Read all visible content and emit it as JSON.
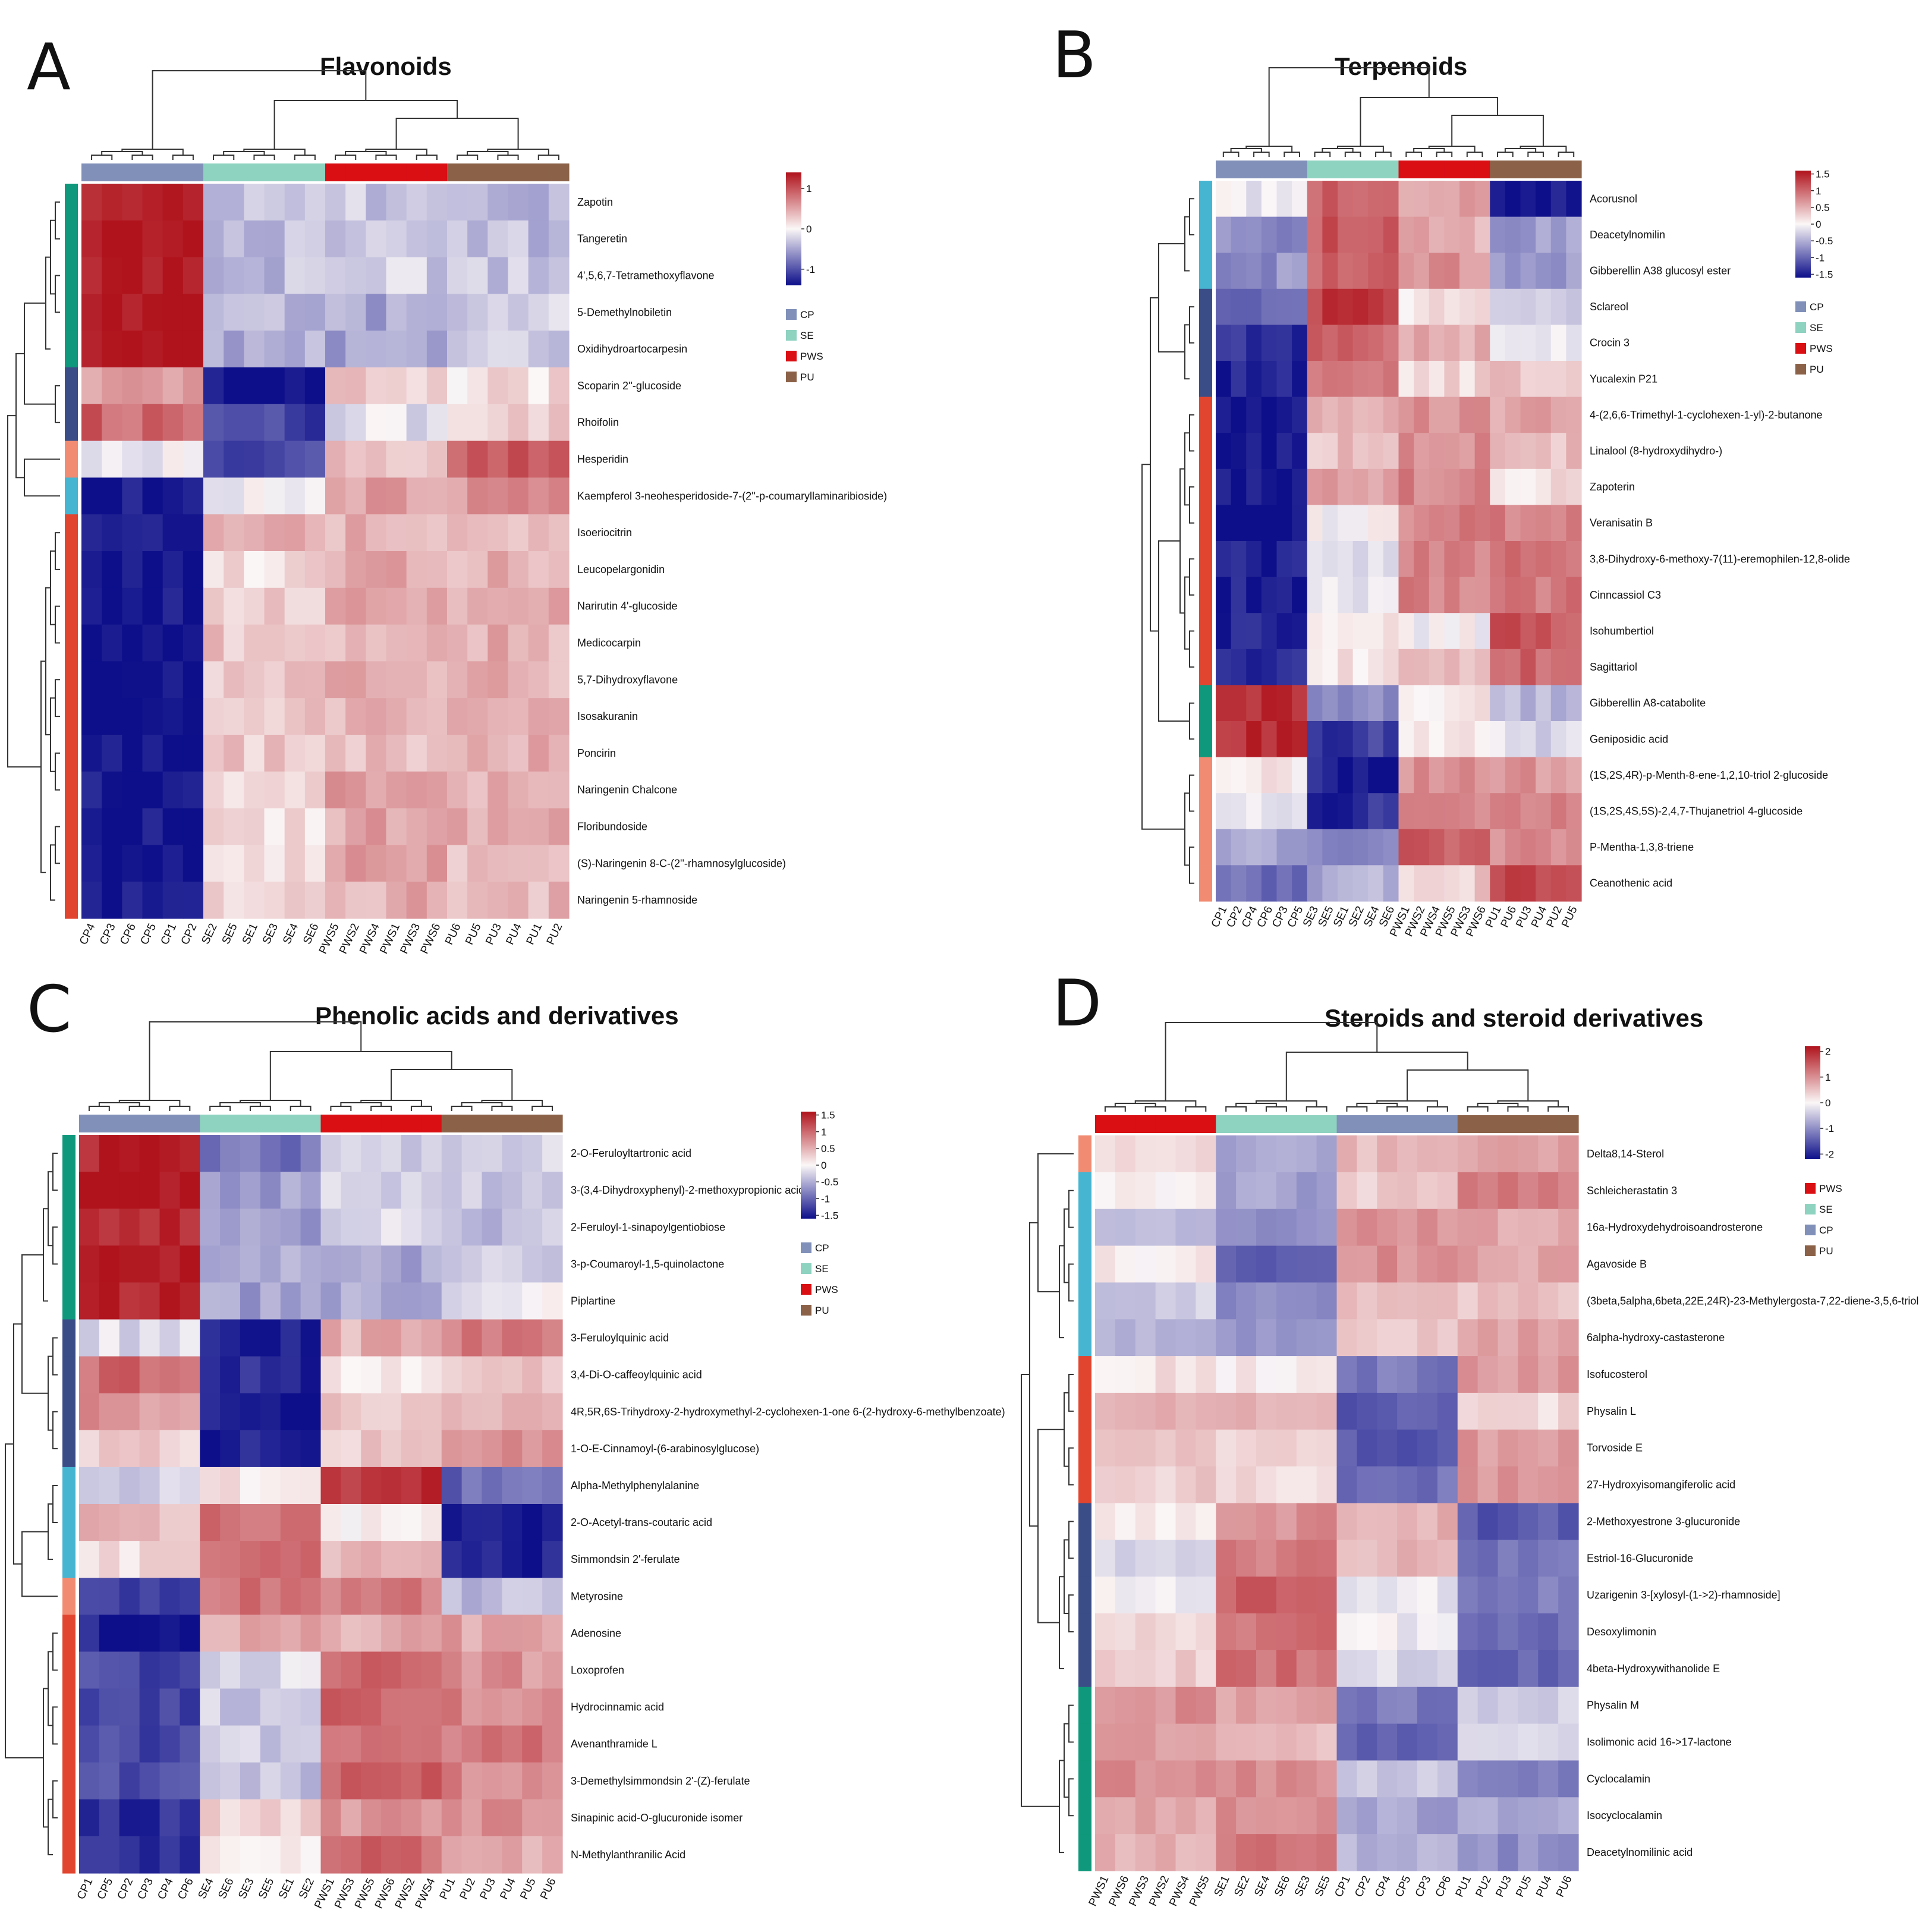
{
  "colors": {
    "CP": "#8090b9",
    "SE": "#8ed2c0",
    "PWS": "#d90f14",
    "PU": "#8b6248",
    "low": "#0d0f8a",
    "mid": "#fbf7f7",
    "high": "#b0131c",
    "row_green": "#0f987b",
    "row_navy": "#3b4d86",
    "row_red": "#e2452f",
    "row_cyan": "#46b5d2",
    "row_salmon": "#f18c73"
  },
  "chart_data": [
    {
      "type": "heatmap",
      "letter": "A",
      "title": "Flavonoids",
      "legend": {
        "ticks": [
          "1",
          "0",
          "-1"
        ],
        "range": [
          -1.4,
          1.4
        ],
        "groups": [
          "CP",
          "SE",
          "PWS",
          "PU"
        ]
      },
      "columns": [
        "CP4",
        "CP3",
        "CP6",
        "CP5",
        "CP1",
        "CP2",
        "SE2",
        "SE5",
        "SE1",
        "SE3",
        "SE4",
        "SE6",
        "PWS5",
        "PWS2",
        "PWS4",
        "PWS1",
        "PWS3",
        "PWS6",
        "PU6",
        "PU5",
        "PU3",
        "PU4",
        "PU1",
        "PU2"
      ],
      "column_groups": [
        "CP",
        "CP",
        "CP",
        "CP",
        "CP",
        "CP",
        "SE",
        "SE",
        "SE",
        "SE",
        "SE",
        "SE",
        "PWS",
        "PWS",
        "PWS",
        "PWS",
        "PWS",
        "PWS",
        "PU",
        "PU",
        "PU",
        "PU",
        "PU",
        "PU"
      ],
      "rows": [
        "Zapotin",
        "Tangeretin",
        "4',5,6,7-Tetramethoxyflavone",
        "5-Demethylnobiletin",
        "Oxidihydroartocarpesin",
        "Scoparin 2''-glucoside",
        "Rhoifolin",
        "Hesperidin",
        "Kaempferol 3-neohesperidoside-7-(2''-p-coumaryllaminaribioside)",
        "Isoeriocitrin",
        "Leucopelargonidin",
        "Narirutin 4'-glucoside",
        "Medicocarpin",
        "5,7-Dihydroxyflavone",
        "Isosakuranin",
        "Poncirin",
        "Naringenin Chalcone",
        "Floribundoside",
        "(S)-Naringenin 8-C-(2''-rhamnosylglucoside)",
        "Naringenin 5-rhamnoside"
      ],
      "row_clusters": [
        "green",
        "green",
        "green",
        "green",
        "green",
        "navy",
        "navy",
        "salmon",
        "cyan",
        "red",
        "red",
        "red",
        "red",
        "red",
        "red",
        "red",
        "red",
        "red",
        "red",
        "red"
      ],
      "group_profiles": [
        [
          1.4,
          -0.35,
          -0.3,
          -0.35
        ],
        [
          1.4,
          -0.35,
          -0.3,
          -0.35
        ],
        [
          1.4,
          -0.35,
          -0.25,
          -0.3
        ],
        [
          1.4,
          -0.4,
          -0.5,
          -0.25
        ],
        [
          1.4,
          -0.45,
          -0.55,
          -0.3
        ],
        [
          0.6,
          -1.4,
          0.25,
          0.15
        ],
        [
          0.9,
          -1.1,
          -0.15,
          0.2
        ],
        [
          -0.05,
          -1.1,
          0.3,
          1.0
        ],
        [
          -1.4,
          -0.1,
          0.5,
          0.6
        ],
        [
          -1.4,
          0.45,
          0.4,
          0.35
        ],
        [
          -1.4,
          0.15,
          0.5,
          0.45
        ],
        [
          -1.4,
          0.2,
          0.5,
          0.45
        ],
        [
          -1.4,
          0.3,
          0.4,
          0.45
        ],
        [
          -1.4,
          0.3,
          0.4,
          0.45
        ],
        [
          -1.4,
          0.3,
          0.4,
          0.45
        ],
        [
          -1.4,
          0.3,
          0.4,
          0.45
        ],
        [
          -1.4,
          0.15,
          0.5,
          0.45
        ],
        [
          -1.4,
          0.15,
          0.5,
          0.45
        ],
        [
          -1.4,
          0.15,
          0.5,
          0.4
        ],
        [
          -1.4,
          0.15,
          0.45,
          0.4
        ]
      ]
    },
    {
      "type": "heatmap",
      "letter": "B",
      "title": "Terpenoids",
      "legend": {
        "ticks": [
          "1.5",
          "1",
          "0.5",
          "0",
          "-0.5",
          "-1",
          "-1.5"
        ],
        "range": [
          -1.6,
          1.6
        ],
        "groups": [
          "CP",
          "SE",
          "PWS",
          "PU"
        ]
      },
      "columns": [
        "CP1",
        "CP2",
        "CP4",
        "CP6",
        "CP3",
        "CP5",
        "SE3",
        "SE5",
        "SE1",
        "SE2",
        "SE4",
        "SE6",
        "PWS1",
        "PWS2",
        "PWS4",
        "PWS5",
        "PWS3",
        "PWS6",
        "PU1",
        "PU6",
        "PU3",
        "PU4",
        "PU2",
        "PU5"
      ],
      "column_groups": [
        "CP",
        "CP",
        "CP",
        "CP",
        "CP",
        "CP",
        "SE",
        "SE",
        "SE",
        "SE",
        "SE",
        "SE",
        "PWS",
        "PWS",
        "PWS",
        "PWS",
        "PWS",
        "PWS",
        "PU",
        "PU",
        "PU",
        "PU",
        "PU",
        "PU"
      ],
      "rows": [
        "Acorusnol",
        "Deacetylnomilin",
        "Gibberellin A38 glucosyl ester",
        "Sclareol",
        "Crocin 3",
        "Yucalexin P21",
        "4-(2,6,6-Trimethyl-1-cyclohexen-1-yl)-2-butanone",
        "Linalool (8-hydroxydihydro-)",
        "Zapoterin",
        "Veranisatin B",
        "3,8-Dihydroxy-6-methoxy-7(11)-eremophilen-12,8-olide",
        "Cinncassiol C3",
        "Isohumbertiol",
        "Sagittariol",
        "Gibberellin A8-catabolite",
        "Geniposidic acid",
        "(1S,2S,4R)-p-Menth-8-ene-1,2,10-triol 2-glucoside",
        "(1S,2S,4S,5S)-2,4,7-Thujanetriol 4-glucoside",
        "P-Mentha-1,3,8-triene",
        "Ceanothenic acid"
      ],
      "row_clusters": [
        "cyan",
        "cyan",
        "cyan",
        "navy",
        "navy",
        "navy",
        "red",
        "red",
        "red",
        "red",
        "red",
        "red",
        "red",
        "red",
        "green",
        "green",
        "salmon",
        "salmon",
        "salmon",
        "salmon"
      ],
      "group_profiles": [
        [
          -0.1,
          1.0,
          0.6,
          -1.5
        ],
        [
          -0.7,
          1.1,
          0.5,
          -0.6
        ],
        [
          -0.7,
          1.0,
          0.7,
          -0.6
        ],
        [
          -1.0,
          1.3,
          0.1,
          -0.2
        ],
        [
          -1.4,
          1.0,
          0.5,
          0.0
        ],
        [
          -1.5,
          1.0,
          0.2,
          0.4
        ],
        [
          -1.6,
          0.4,
          0.7,
          0.6
        ],
        [
          -1.6,
          0.4,
          0.7,
          0.4
        ],
        [
          -1.6,
          0.6,
          0.8,
          0.2
        ],
        [
          -1.6,
          0.0,
          0.8,
          0.8
        ],
        [
          -1.5,
          -0.2,
          0.8,
          0.9
        ],
        [
          -1.5,
          -0.2,
          0.8,
          0.9
        ],
        [
          -1.5,
          0.2,
          0.0,
          1.1
        ],
        [
          -1.4,
          0.1,
          0.4,
          1.0
        ],
        [
          1.4,
          -0.8,
          0.1,
          -0.4
        ],
        [
          1.4,
          -1.3,
          0.1,
          -0.2
        ],
        [
          0.1,
          -1.5,
          0.7,
          0.7
        ],
        [
          -0.2,
          -1.4,
          0.8,
          0.8
        ],
        [
          -0.6,
          -0.8,
          1.1,
          0.7
        ],
        [
          -0.9,
          -0.5,
          0.3,
          1.3
        ]
      ]
    },
    {
      "type": "heatmap",
      "letter": "C",
      "title": "Phenolic acids and derivatives",
      "legend": {
        "ticks": [
          "1.5",
          "1",
          "0.5",
          "0",
          "-0.5",
          "-1",
          "-1.5"
        ],
        "range": [
          -1.6,
          1.6
        ],
        "groups": [
          "CP",
          "SE",
          "PWS",
          "PU"
        ]
      },
      "columns": [
        "CP1",
        "CP5",
        "CP2",
        "CP3",
        "CP4",
        "CP6",
        "SE4",
        "SE6",
        "SE3",
        "SE5",
        "SE1",
        "SE2",
        "PWS1",
        "PWS3",
        "PWS5",
        "PWS6",
        "PWS2",
        "PWS4",
        "PU1",
        "PU2",
        "PU3",
        "PU4",
        "PU5",
        "PU6"
      ],
      "column_groups": [
        "CP",
        "CP",
        "CP",
        "CP",
        "CP",
        "CP",
        "SE",
        "SE",
        "SE",
        "SE",
        "SE",
        "SE",
        "PWS",
        "PWS",
        "PWS",
        "PWS",
        "PWS",
        "PWS",
        "PU",
        "PU",
        "PU",
        "PU",
        "PU",
        "PU"
      ],
      "rows": [
        "2-O-Feruloyltartronic acid",
        "3-(3,4-Dihydroxyphenyl)-2-methoxypropionic acid",
        "2-Feruloyl-1-sinapoylgentiobiose",
        "3-p-Coumaroyl-1,5-quinolactone",
        "Piplartine",
        "3-Feruloylquinic acid",
        "3,4-Di-O-caffeoylquinic acid",
        "4R,5R,6S-Trihydroxy-2-hydroxymethyl-2-cyclohexen-1-one 6-(2-hydroxy-6-methylbenzoate)",
        "1-O-E-Cinnamoyl-(6-arabinosylglucose)",
        "Alpha-Methylphenylalanine",
        "2-O-Acetyl-trans-coutaric acid",
        "Simmondsin 2'-ferulate",
        "Metyrosine",
        "Adenosine",
        "Loxoprofen",
        "Hydrocinnamic acid",
        "Avenanthramide L",
        "3-Demethylsimmondsin 2'-(Z)-ferulate",
        "Sinapinic acid-O-glucuronide isomer",
        "N-Methylanthranilic Acid"
      ],
      "row_clusters": [
        "green",
        "green",
        "green",
        "green",
        "green",
        "navy",
        "navy",
        "navy",
        "navy",
        "cyan",
        "cyan",
        "cyan",
        "salmon",
        "red",
        "red",
        "red",
        "red",
        "red",
        "red",
        "red"
      ],
      "group_profiles": [
        [
          1.5,
          -0.9,
          -0.25,
          -0.2
        ],
        [
          1.6,
          -0.6,
          -0.3,
          -0.35
        ],
        [
          1.5,
          -0.6,
          -0.2,
          -0.4
        ],
        [
          1.6,
          -0.5,
          -0.6,
          -0.3
        ],
        [
          1.5,
          -0.6,
          -0.5,
          -0.1
        ],
        [
          -0.2,
          -1.5,
          0.5,
          0.9
        ],
        [
          1.0,
          -1.4,
          0.15,
          0.3
        ],
        [
          0.7,
          -1.5,
          0.3,
          0.5
        ],
        [
          0.3,
          -1.5,
          0.3,
          0.8
        ],
        [
          -0.3,
          0.1,
          1.4,
          -1.0
        ],
        [
          0.4,
          0.9,
          0.1,
          -1.5
        ],
        [
          0.2,
          0.9,
          0.4,
          -1.5
        ],
        [
          -1.2,
          0.9,
          0.9,
          -0.4
        ],
        [
          -1.5,
          0.5,
          0.5,
          0.6
        ],
        [
          -1.2,
          -0.2,
          1.0,
          0.7
        ],
        [
          -1.2,
          -0.3,
          1.0,
          0.8
        ],
        [
          -1.2,
          -0.3,
          0.9,
          0.9
        ],
        [
          -1.2,
          -0.4,
          1.0,
          0.8
        ],
        [
          -1.4,
          0.2,
          0.7,
          0.7
        ],
        [
          -1.4,
          0.0,
          1.0,
          0.5
        ]
      ]
    },
    {
      "type": "heatmap",
      "letter": "D",
      "title": "Steroids and steroid derivatives",
      "legend": {
        "ticks": [
          "2",
          "1",
          "0",
          "-1",
          "-2"
        ],
        "range": [
          -2.2,
          2.2
        ],
        "groups": [
          "PWS",
          "SE",
          "CP",
          "PU"
        ]
      },
      "columns": [
        "PWS1",
        "PWS6",
        "PWS3",
        "PWS2",
        "PWS4",
        "PWS5",
        "SE1",
        "SE2",
        "SE4",
        "SE6",
        "SE3",
        "SE5",
        "CP1",
        "CP2",
        "CP4",
        "CP5",
        "CP3",
        "CP6",
        "PU1",
        "PU2",
        "PU3",
        "PU5",
        "PU4",
        "PU6"
      ],
      "column_groups": [
        "PWS",
        "PWS",
        "PWS",
        "PWS",
        "PWS",
        "PWS",
        "SE",
        "SE",
        "SE",
        "SE",
        "SE",
        "SE",
        "CP",
        "CP",
        "CP",
        "CP",
        "CP",
        "CP",
        "PU",
        "PU",
        "PU",
        "PU",
        "PU",
        "PU"
      ],
      "rows": [
        "Delta8,14-Sterol",
        "Schleicherastatin 3",
        "16a-Hydroxydehydroisoandrosterone",
        "Agavoside B",
        "(3beta,5alpha,6beta,22E,24R)-23-Methylergosta-7,22-diene-3,5,6-triol",
        "6alpha-hydroxy-castasterone",
        "Isofucosterol",
        "Physalin L",
        "Torvoside E",
        "27-Hydroxyisomangiferolic acid",
        "2-Methoxyestrone 3-glucuronide",
        "Estriol-16-Glucuronide",
        "Uzarigenin 3-[xylosyl-(1->2)-rhamnoside]",
        "Desoxylimonin",
        "4beta-Hydroxywithanolide E",
        "Physalin M",
        "Isolimonic acid 16->17-lactone",
        "Cyclocalamin",
        "Isocyclocalamin",
        "Deacetylnomilinic acid"
      ],
      "row_clusters": [
        "salmon",
        "cyan",
        "cyan",
        "cyan",
        "cyan",
        "cyan",
        "red",
        "red",
        "red",
        "red",
        "navy",
        "navy",
        "navy",
        "navy",
        "navy",
        "green",
        "green",
        "green",
        "green",
        "green"
      ],
      "group_profiles": [
        [
          0.2,
          -0.8,
          0.6,
          0.8
        ],
        [
          0.0,
          -0.8,
          0.4,
          1.2
        ],
        [
          -0.5,
          -0.9,
          1.0,
          0.8
        ],
        [
          0.1,
          -1.5,
          1.0,
          0.8
        ],
        [
          -0.4,
          -1.0,
          0.6,
          0.5
        ],
        [
          -0.7,
          -0.9,
          0.4,
          0.8
        ],
        [
          0.2,
          0.1,
          -1.2,
          0.9
        ],
        [
          0.6,
          0.6,
          -1.5,
          0.3
        ],
        [
          0.6,
          0.3,
          -1.5,
          0.9
        ],
        [
          0.4,
          0.3,
          -1.3,
          0.9
        ],
        [
          0.1,
          1.0,
          0.7,
          -1.5
        ],
        [
          -0.3,
          1.2,
          0.6,
          -1.2
        ],
        [
          -0.1,
          1.5,
          -0.2,
          -1.2
        ],
        [
          0.3,
          1.3,
          -0.1,
          -1.3
        ],
        [
          0.4,
          1.3,
          -0.3,
          -1.4
        ],
        [
          1.0,
          0.8,
          -1.2,
          -0.4
        ],
        [
          0.9,
          0.6,
          -1.5,
          -0.2
        ],
        [
          1.0,
          1.0,
          -0.5,
          -1.2
        ],
        [
          0.8,
          1.0,
          -0.8,
          -0.8
        ],
        [
          0.7,
          1.3,
          -0.6,
          -1.0
        ]
      ]
    }
  ]
}
